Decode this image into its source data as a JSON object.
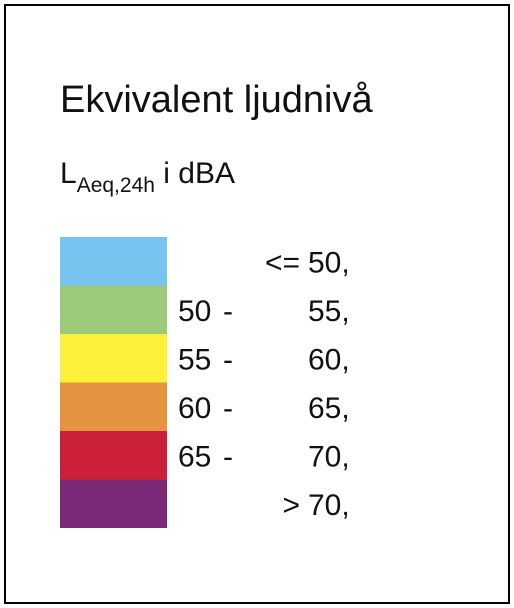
{
  "legend": {
    "title": "Ekvivalent ljudnivå",
    "subtitle": {
      "symbol": "L",
      "subscript": "Aeq,24h",
      "unit": " i dBA"
    },
    "items": [
      {
        "color": "#78c4f0",
        "parts": [
          "<=",
          "50,"
        ]
      },
      {
        "color": "#9dc97a",
        "parts": [
          "50",
          "-",
          "55,"
        ]
      },
      {
        "color": "#fff03a",
        "parts": [
          "55",
          "-",
          "60,"
        ]
      },
      {
        "color": "#e4943e",
        "parts": [
          "60",
          "-",
          "65,"
        ]
      },
      {
        "color": "#cc1f3a",
        "parts": [
          "65",
          "-",
          "70,"
        ]
      },
      {
        "color": "#7b2a78",
        "parts": [
          ">",
          "70,"
        ]
      }
    ]
  }
}
